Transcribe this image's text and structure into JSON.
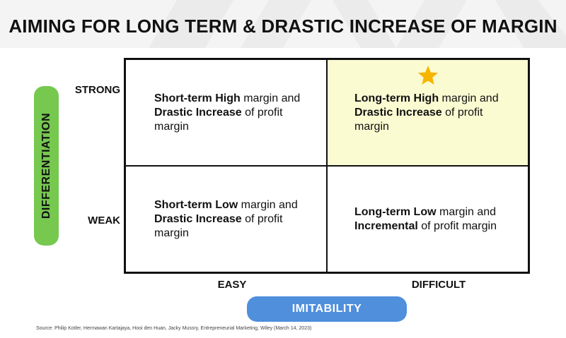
{
  "title": "AIMING FOR LONG TERM & DRASTIC INCREASE OF MARGIN",
  "y_axis": {
    "label": "DIFFERENTIATION",
    "high": "STRONG",
    "low": "WEAK",
    "color": "#76c84f"
  },
  "x_axis": {
    "label": "IMITABILITY",
    "low": "EASY",
    "high": "DIFFICULT",
    "color": "#4f8fdc"
  },
  "quadrants": {
    "top_left": {
      "bold1": "Short-term High",
      "text1": " margin and ",
      "bold2": "Drastic Increase",
      "text2": " of profit margin"
    },
    "top_right": {
      "bold1": "Long-term High",
      "text1": " margin and ",
      "bold2": "Drastic Increase",
      "text2": " of profit margin",
      "highlight_color": "#fbfbd2",
      "marker_icon": "star-icon",
      "marker_color": "#f7b500"
    },
    "bottom_left": {
      "bold1": "Short-term Low",
      "text1": " margin and ",
      "bold2": "Drastic Increase",
      "text2": " of profit margin"
    },
    "bottom_right": {
      "bold1": "Long-term Low",
      "text1": " margin and ",
      "bold2": "Incremental",
      "text2": " of profit margin"
    }
  },
  "source": "Source: Philip Kotler, Hermawan Kartajaya, Hooi den Huan, Jacky Mussry, Entrepreneurial Marketing, Wiley (March 14, 2023)"
}
